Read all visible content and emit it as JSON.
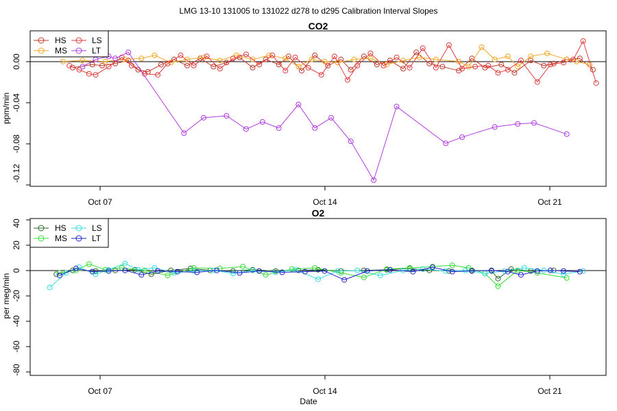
{
  "figure_title": "LMG   13-10    131005 to 131022    d278 to d295   Calibration Interval Slopes",
  "x_axis": {
    "label": "Date",
    "ticks": [
      {
        "day": 7,
        "label": "Oct 07"
      },
      {
        "day": 14,
        "label": "Oct 14"
      },
      {
        "day": 21,
        "label": "Oct 21"
      }
    ],
    "range_days": [
      5.0,
      22.6
    ]
  },
  "colors": {
    "HS": "#c0392b",
    "MS": "#f5a623",
    "LS": "#e03c3c",
    "LT": "#b03ce0",
    "O2_HS": "#2e6b2e",
    "O2_MS": "#33dd33",
    "O2_LS": "#33dddd",
    "O2_LT": "#1f1fd0",
    "zero_line": "#000000"
  },
  "chart_data": [
    {
      "type": "line",
      "title": "CO2",
      "ylabel": "ppm/min",
      "xlabel": "",
      "ylim": [
        -0.122,
        0.03
      ],
      "yticks": [
        0.0,
        -0.04,
        -0.08,
        -0.12
      ],
      "ytick_labels": [
        "0.00",
        "-0.04",
        "-0.08",
        "-0.12"
      ],
      "legend": [
        "HS",
        "MS",
        "LS",
        "LT"
      ],
      "legend_position": "top-left",
      "series": [
        {
          "name": "HS",
          "color_key": "HS",
          "x": [
            6.3,
            6.9,
            7.2,
            7.6,
            8.0,
            8.3,
            8.6,
            9.0,
            9.4,
            9.8,
            10.2,
            10.6,
            11.0,
            11.4,
            11.8,
            12.2,
            12.6,
            12.9,
            13.3,
            13.7,
            14.1,
            14.5,
            14.8,
            15.2,
            15.6,
            16.0,
            16.4,
            16.8,
            17.2,
            17.6,
            18.1,
            18.5,
            18.9,
            19.4,
            19.8,
            20.3,
            20.7,
            21.0,
            21.4,
            21.8,
            22.2
          ],
          "y": [
            -0.006,
            -0.003,
            -0.004,
            -0.002,
            0.001,
            -0.008,
            -0.01,
            -0.003,
            0.002,
            -0.004,
            0.003,
            -0.005,
            -0.001,
            0.004,
            -0.006,
            0.002,
            -0.003,
            0.005,
            -0.009,
            0.006,
            -0.004,
            0.002,
            -0.008,
            0.005,
            -0.003,
            0.001,
            -0.007,
            0.009,
            -0.002,
            -0.005,
            -0.009,
            0.003,
            -0.006,
            -0.003,
            -0.011,
            0.001,
            -0.004,
            -0.002,
            0.002,
            0.003,
            -0.008
          ]
        },
        {
          "name": "MS",
          "color_key": "MS",
          "x": [
            6.0,
            6.6,
            7.3,
            7.9,
            8.4,
            8.8,
            9.3,
            9.8,
            10.3,
            10.8,
            11.3,
            11.8,
            12.3,
            12.8,
            13.2,
            13.6,
            14.0,
            14.4,
            14.9,
            15.4,
            15.9,
            16.4,
            16.9,
            17.4,
            18.1,
            18.4,
            18.8,
            19.2,
            19.6,
            19.9,
            20.3,
            20.8,
            21.4,
            21.7,
            22.1
          ],
          "y": [
            0.0,
            0.001,
            0.0,
            0.002,
            0.003,
            0.006,
            -0.001,
            0.002,
            0.004,
            0.001,
            0.006,
            0.002,
            0.006,
            0.003,
            -0.005,
            0.002,
            0.0,
            -0.001,
            0.002,
            0.003,
            -0.003,
            0.001,
            0.004,
            0.002,
            0.0,
            -0.005,
            0.014,
            0.002,
            0.005,
            -0.005,
            0.005,
            0.008,
            0.002,
            0.0,
            -0.003
          ]
        },
        {
          "name": "LS",
          "color_key": "LS",
          "x": [
            6.2,
            6.5,
            6.8,
            7.0,
            7.4,
            7.8,
            8.1,
            8.5,
            8.9,
            9.2,
            9.6,
            10.0,
            10.4,
            10.8,
            11.2,
            11.6,
            12.0,
            12.4,
            12.8,
            13.1,
            13.5,
            13.9,
            14.3,
            14.7,
            15.0,
            15.4,
            15.8,
            16.2,
            16.6,
            17.0,
            17.4,
            17.8,
            18.2,
            18.6,
            19.0,
            19.3,
            19.6,
            20.0,
            20.5,
            20.9,
            21.3,
            21.6,
            21.9,
            22.3
          ],
          "y": [
            -0.004,
            -0.008,
            -0.012,
            -0.013,
            -0.005,
            0.004,
            -0.004,
            -0.012,
            -0.013,
            -0.002,
            0.006,
            -0.004,
            0.005,
            -0.007,
            0.003,
            0.007,
            -0.003,
            0.006,
            -0.009,
            0.004,
            -0.006,
            -0.013,
            0.005,
            -0.018,
            -0.004,
            0.008,
            -0.004,
            0.004,
            -0.006,
            0.013,
            -0.006,
            0.016,
            -0.007,
            -0.005,
            -0.004,
            -0.011,
            -0.008,
            0.001,
            -0.02,
            -0.003,
            -0.001,
            0.002,
            0.02,
            -0.021
          ]
        },
        {
          "name": "LT",
          "color_key": "LT",
          "x": [
            6.6,
            7.0,
            7.4,
            7.6,
            8.0,
            9.7,
            10.3,
            11.0,
            11.6,
            12.1,
            12.6,
            13.2,
            13.7,
            14.2,
            14.8,
            15.5,
            16.2,
            17.7,
            18.2,
            19.2,
            19.9,
            20.4,
            21.4
          ],
          "y": [
            -0.005,
            0.002,
            0.005,
            0.003,
            0.009,
            -0.07,
            -0.055,
            -0.053,
            -0.066,
            -0.059,
            -0.065,
            -0.042,
            -0.065,
            -0.055,
            -0.078,
            -0.116,
            -0.044,
            -0.08,
            -0.074,
            -0.064,
            -0.061,
            -0.06,
            -0.071
          ]
        }
      ]
    },
    {
      "type": "line",
      "title": "O2",
      "ylabel": "per meg/min",
      "xlabel": "Date",
      "ylim": [
        -82,
        42
      ],
      "yticks": [
        40,
        20,
        0,
        -20,
        -40,
        -60,
        -80
      ],
      "ytick_labels": [
        "40",
        "20",
        "0",
        "-20",
        "-40",
        "-60",
        "-80"
      ],
      "legend": [
        "HS",
        "MS",
        "LS",
        "LT"
      ],
      "legend_position": "top-left",
      "series": [
        {
          "name": "HS",
          "color_key": "O2_HS",
          "x": [
            5.8,
            6.3,
            7.0,
            7.6,
            8.2,
            8.7,
            9.3,
            9.9,
            10.5,
            11.2,
            11.8,
            12.5,
            13.2,
            13.8,
            14.5,
            15.2,
            15.9,
            16.6,
            17.2,
            17.8,
            18.5,
            19.1,
            19.3,
            19.7,
            20.3,
            21.0
          ],
          "y": [
            -2.0,
            1.0,
            0.5,
            1.0,
            1.5,
            -2.0,
            1.0,
            2.5,
            1.0,
            0.5,
            1.5,
            0.5,
            1.0,
            1.5,
            0.5,
            1.0,
            1.5,
            2.5,
            1.0,
            0.5,
            1.0,
            0.5,
            -5.5,
            2.0,
            0.5,
            1.0
          ]
        },
        {
          "name": "MS",
          "color_key": "O2_MS",
          "x": [
            5.9,
            6.4,
            6.8,
            7.3,
            7.8,
            8.5,
            9.2,
            10.0,
            10.8,
            11.5,
            12.2,
            13.0,
            13.7,
            14.5,
            15.2,
            15.9,
            16.6,
            17.3,
            17.9,
            18.4,
            18.9,
            19.3,
            19.9,
            20.5,
            21.4
          ],
          "y": [
            -1.0,
            1.0,
            6.0,
            1.5,
            3.0,
            1.0,
            -3.0,
            3.0,
            2.5,
            4.0,
            -2.5,
            2.0,
            3.0,
            -1.0,
            -4.5,
            2.0,
            3.0,
            4.0,
            5.0,
            3.0,
            -1.5,
            -11.5,
            1.0,
            -1.0,
            -5.0
          ]
        },
        {
          "name": "LS",
          "color_key": "O2_LS",
          "x": [
            5.6,
            6.1,
            6.5,
            7.0,
            7.4,
            7.9,
            8.3,
            8.8,
            9.4,
            10.0,
            10.6,
            11.2,
            11.8,
            12.5,
            13.1,
            13.8,
            14.4,
            15.0,
            15.7,
            16.4,
            17.0,
            17.7,
            18.3,
            18.9,
            19.5,
            20.1,
            20.7,
            21.3,
            21.9
          ],
          "y": [
            -12.5,
            -1.0,
            3.5,
            -2.0,
            1.5,
            6.5,
            1.5,
            3.0,
            -1.0,
            0.5,
            1.0,
            -1.5,
            1.0,
            -0.5,
            1.5,
            -6.0,
            0.5,
            1.0,
            -3.0,
            1.0,
            2.0,
            0.5,
            1.0,
            -1.5,
            0.5,
            3.0,
            1.0,
            -2.0,
            0.5
          ]
        },
        {
          "name": "LT",
          "color_key": "O2_LT",
          "x": [
            5.9,
            6.4,
            6.9,
            7.4,
            7.9,
            8.4,
            8.9,
            9.5,
            10.1,
            10.7,
            11.4,
            12.0,
            12.7,
            13.4,
            14.0,
            14.6,
            15.3,
            16.0,
            16.7,
            17.3,
            17.9,
            18.5,
            19.1,
            19.6,
            20.0,
            20.5,
            20.9,
            21.3,
            21.8
          ],
          "y": [
            -3.0,
            2.5,
            0.0,
            0.5,
            1.0,
            -2.5,
            0.5,
            0.0,
            -0.5,
            1.0,
            -1.0,
            0.5,
            -0.5,
            0.0,
            0.5,
            -6.5,
            0.5,
            1.5,
            0.0,
            3.5,
            0.0,
            0.5,
            1.0,
            0.0,
            -2.5,
            0.5,
            1.0,
            0.5,
            0.0
          ]
        }
      ]
    }
  ]
}
